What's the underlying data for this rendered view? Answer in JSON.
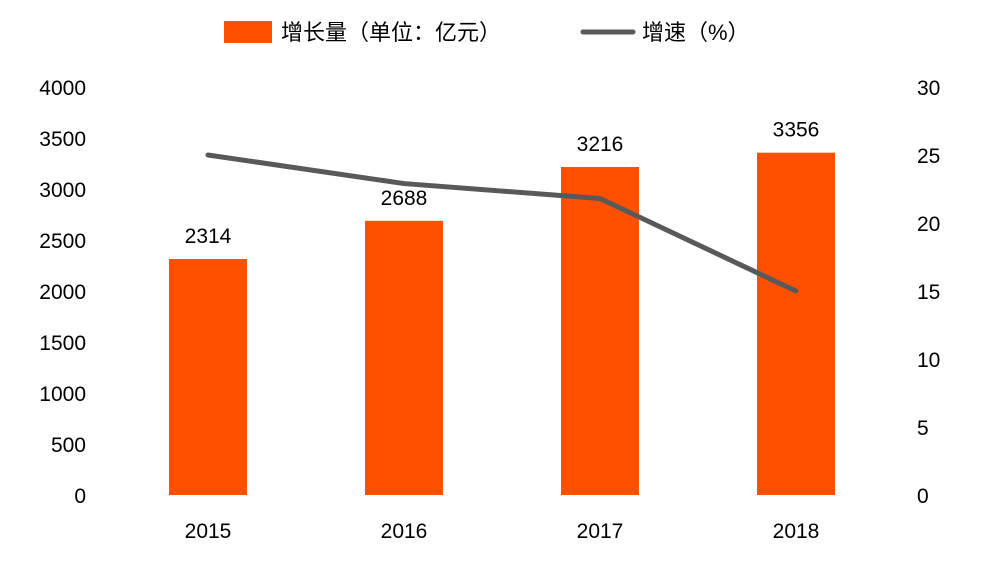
{
  "chart_data": {
    "type": "bar",
    "categories": [
      "2015",
      "2016",
      "2017",
      "2018"
    ],
    "series": [
      {
        "name": "增长量（单位：亿元）",
        "type": "bar",
        "axis": "left",
        "color": "#ff5000",
        "values": [
          2314,
          2688,
          3216,
          3356
        ]
      },
      {
        "name": "增速（%）",
        "type": "line",
        "axis": "right",
        "color": "#595959",
        "values": [
          25.0,
          22.9,
          21.8,
          15.0
        ]
      }
    ],
    "data_labels": [
      "2314",
      "2688",
      "3216",
      "3356"
    ],
    "y_left": {
      "ticks": [
        "0",
        "500",
        "1000",
        "1500",
        "2000",
        "2500",
        "3000",
        "3500",
        "4000"
      ],
      "range": [
        0,
        4000
      ]
    },
    "y_right": {
      "ticks": [
        "0",
        "5",
        "10",
        "15",
        "20",
        "25",
        "30"
      ],
      "range": [
        0,
        30
      ]
    },
    "legend_position": "top-center",
    "grid": false
  }
}
